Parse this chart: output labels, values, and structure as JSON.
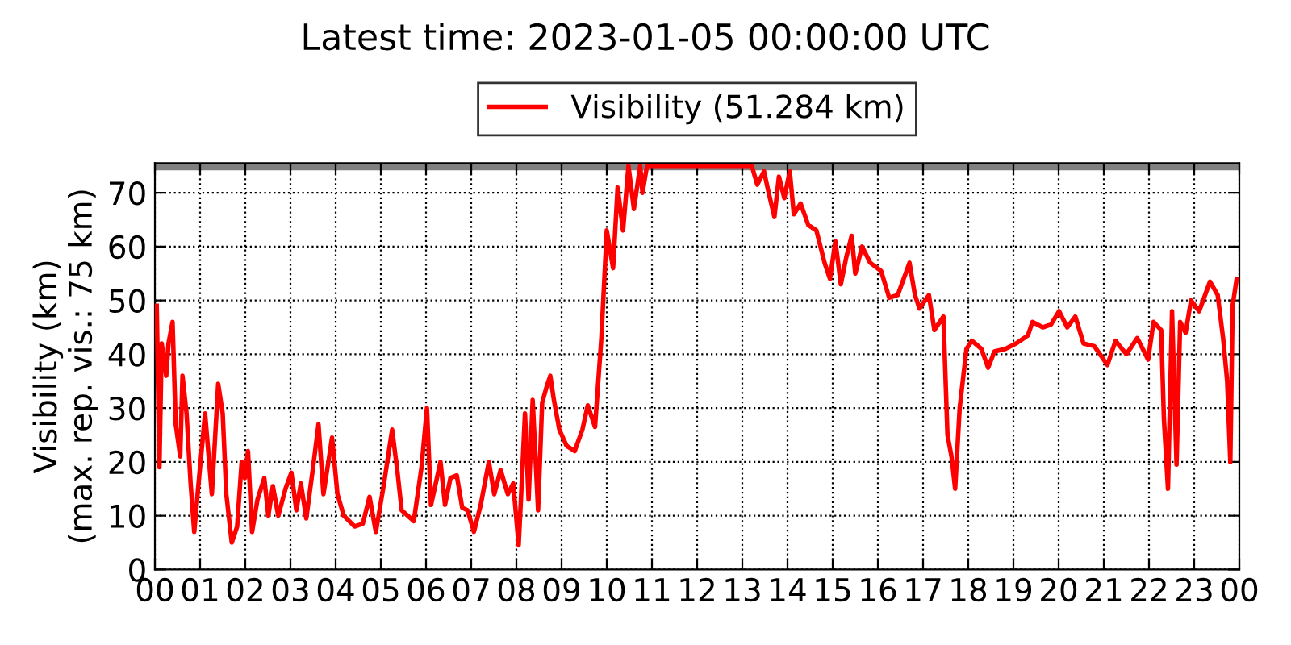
{
  "chart_data": {
    "type": "line",
    "title": "Latest time: 2023-01-05 00:00:00 UTC",
    "ylabel": "Visibility (km)\n(max. rep. vis.: 75 km)",
    "xlim": [
      0,
      24
    ],
    "ylim": [
      0,
      75.5
    ],
    "xticks": [
      {
        "value": 0,
        "label": "00"
      },
      {
        "value": 1,
        "label": "01"
      },
      {
        "value": 2,
        "label": "02"
      },
      {
        "value": 3,
        "label": "03"
      },
      {
        "value": 4,
        "label": "04"
      },
      {
        "value": 5,
        "label": "05"
      },
      {
        "value": 6,
        "label": "06"
      },
      {
        "value": 7,
        "label": "07"
      },
      {
        "value": 8,
        "label": "08"
      },
      {
        "value": 9,
        "label": "09"
      },
      {
        "value": 10,
        "label": "10"
      },
      {
        "value": 11,
        "label": "11"
      },
      {
        "value": 12,
        "label": "12"
      },
      {
        "value": 13,
        "label": "13"
      },
      {
        "value": 14,
        "label": "14"
      },
      {
        "value": 15,
        "label": "15"
      },
      {
        "value": 16,
        "label": "16"
      },
      {
        "value": 17,
        "label": "17"
      },
      {
        "value": 18,
        "label": "18"
      },
      {
        "value": 19,
        "label": "19"
      },
      {
        "value": 20,
        "label": "20"
      },
      {
        "value": 21,
        "label": "21"
      },
      {
        "value": 22,
        "label": "22"
      },
      {
        "value": 23,
        "label": "23"
      },
      {
        "value": 24,
        "label": "00"
      }
    ],
    "yticks": [
      0,
      10,
      20,
      30,
      40,
      50,
      60,
      70
    ],
    "grid": true,
    "legend": "top",
    "ref_lines": [
      {
        "axis": "y",
        "value": 75,
        "color": "#808080"
      }
    ],
    "series": [
      {
        "name": "Visibility (51.284 km)",
        "color": "#ff0000",
        "x": [
          0.04,
          0.1,
          0.15,
          0.25,
          0.3,
          0.39,
          0.46,
          0.56,
          0.61,
          0.7,
          0.79,
          0.87,
          0.96,
          1.11,
          1.18,
          1.26,
          1.4,
          1.5,
          1.58,
          1.7,
          1.82,
          1.92,
          1.99,
          2.06,
          2.15,
          2.27,
          2.42,
          2.51,
          2.61,
          2.73,
          2.89,
          3.02,
          3.13,
          3.23,
          3.35,
          3.5,
          3.62,
          3.73,
          3.92,
          4.04,
          4.18,
          4.42,
          4.6,
          4.75,
          4.89,
          5.07,
          5.25,
          5.37,
          5.46,
          5.73,
          5.9,
          6.02,
          6.11,
          6.32,
          6.42,
          6.54,
          6.68,
          6.8,
          6.92,
          7.06,
          7.21,
          7.39,
          7.51,
          7.65,
          7.81,
          7.93,
          8.05,
          8.1,
          8.19,
          8.27,
          8.36,
          8.48,
          8.57,
          8.67,
          8.75,
          8.83,
          8.95,
          9.11,
          9.29,
          9.46,
          9.58,
          9.74,
          9.88,
          10.0,
          10.14,
          10.24,
          10.36,
          10.48,
          10.6,
          10.74,
          10.79,
          10.89,
          13.21,
          13.33,
          13.48,
          13.57,
          13.71,
          13.81,
          13.93,
          14.05,
          14.14,
          14.29,
          14.46,
          14.64,
          14.82,
          14.94,
          15.06,
          15.18,
          15.3,
          15.42,
          15.5,
          15.65,
          15.83,
          16.07,
          16.25,
          16.44,
          16.7,
          16.82,
          16.92,
          17.13,
          17.25,
          17.45,
          17.54,
          17.63,
          17.71,
          17.81,
          17.96,
          18.08,
          18.29,
          18.44,
          18.58,
          18.82,
          19.06,
          19.32,
          19.42,
          19.65,
          19.83,
          20.01,
          20.19,
          20.37,
          20.55,
          20.79,
          21.08,
          21.26,
          21.5,
          21.74,
          21.98,
          22.1,
          22.27,
          22.33,
          22.42,
          22.51,
          22.61,
          22.69,
          22.81,
          22.93,
          23.11,
          23.35,
          23.52,
          23.64,
          23.73,
          23.8,
          23.85,
          23.94
        ],
        "values": [
          49,
          19,
          42,
          36,
          42,
          46,
          27,
          21,
          36,
          29,
          16,
          7,
          15.5,
          29,
          22,
          14,
          34.5,
          29,
          14,
          5,
          8,
          20,
          17,
          22,
          7,
          13,
          17,
          10,
          15.5,
          10,
          15,
          18,
          11,
          16,
          9.5,
          19,
          27,
          14,
          24.5,
          14,
          10,
          8,
          8.5,
          13.5,
          7,
          16,
          26,
          18,
          11,
          9,
          19,
          30,
          12,
          20,
          12,
          17,
          17.5,
          11.5,
          11,
          7,
          12,
          20,
          14,
          18.5,
          14,
          16,
          4.5,
          13,
          29,
          13,
          31.5,
          11,
          31,
          34,
          36,
          31.5,
          26,
          23,
          22,
          26,
          30.5,
          26.5,
          43,
          63,
          56,
          71,
          63,
          75,
          67,
          75,
          70,
          75,
          75,
          71.5,
          74,
          70.5,
          65.5,
          73,
          69,
          74,
          66,
          68,
          64,
          63,
          57,
          54,
          61,
          53,
          58,
          62,
          55,
          60,
          57,
          55.5,
          50.5,
          51,
          57,
          51,
          48.5,
          51,
          44.5,
          47,
          25,
          21,
          15,
          30,
          41,
          42.5,
          41,
          37.5,
          40.5,
          41,
          42,
          43.5,
          46,
          45,
          45.5,
          48,
          45,
          47,
          42,
          41.5,
          38,
          42.5,
          40,
          43,
          39,
          46,
          44.5,
          28,
          15,
          48,
          19.5,
          46,
          44,
          50,
          48,
          53.5,
          51,
          43,
          35,
          20,
          49,
          54
        ]
      }
    ]
  }
}
